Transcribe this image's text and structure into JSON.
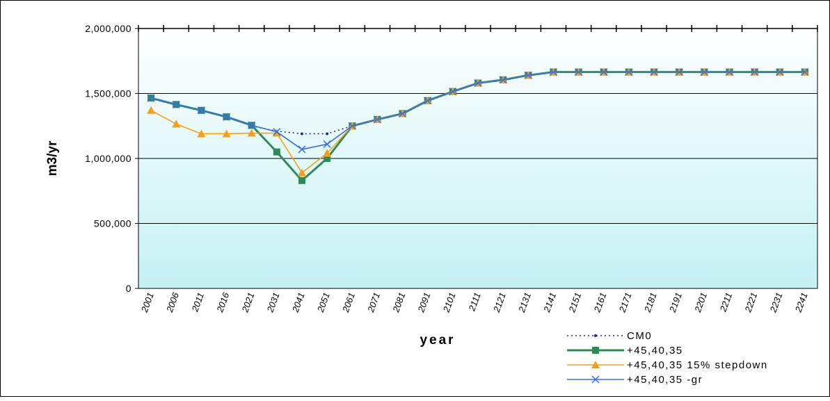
{
  "chart_data": {
    "type": "line",
    "title": "",
    "xlabel": "year",
    "ylabel": "m3/yr",
    "ylim": [
      0,
      2000000
    ],
    "yticks": [
      0,
      500000,
      1000000,
      1500000,
      2000000
    ],
    "ytick_labels": [
      "0",
      "500,000",
      "1,000,000",
      "1,500,000",
      "2,000,000"
    ],
    "grid": "horizontal",
    "legend_position": "bottom-right",
    "categories": [
      "2001",
      "2006",
      "2011",
      "2016",
      "2021",
      "2031",
      "2041",
      "2051",
      "2061",
      "2071",
      "2081",
      "2091",
      "2101",
      "2111",
      "2121",
      "2131",
      "2141",
      "2151",
      "2161",
      "2171",
      "2181",
      "2191",
      "2201",
      "2211",
      "2221",
      "2231",
      "2241"
    ],
    "series": [
      {
        "name": "CM0",
        "color": "#1f2a8c",
        "style": "dotted",
        "marker": "dot",
        "values": [
          1460000,
          1410000,
          1370000,
          1320000,
          1250000,
          1210000,
          1190000,
          1190000,
          1250000,
          1300000,
          1340000,
          1440000,
          1510000,
          1580000,
          1600000,
          1640000,
          1665000,
          1665000,
          1665000,
          1665000,
          1665000,
          1665000,
          1665000,
          1665000,
          1665000,
          1665000,
          1665000
        ]
      },
      {
        "name": "+45,40,35",
        "color": "#2e8b57",
        "style": "solid",
        "marker": "square",
        "values": [
          1465000,
          1415000,
          1370000,
          1320000,
          1255000,
          1050000,
          830000,
          1000000,
          1250000,
          1300000,
          1345000,
          1445000,
          1515000,
          1580000,
          1605000,
          1640000,
          1665000,
          1665000,
          1665000,
          1665000,
          1665000,
          1665000,
          1665000,
          1665000,
          1665000,
          1665000,
          1665000
        ]
      },
      {
        "name": "+45,40,35 15% stepdown",
        "color": "#f5a01a",
        "style": "solid",
        "marker": "triangle",
        "values": [
          1370000,
          1265000,
          1190000,
          1190000,
          1195000,
          1195000,
          890000,
          1040000,
          1250000,
          1300000,
          1345000,
          1445000,
          1515000,
          1580000,
          1605000,
          1640000,
          1665000,
          1665000,
          1665000,
          1665000,
          1665000,
          1665000,
          1665000,
          1665000,
          1665000,
          1665000,
          1665000
        ]
      },
      {
        "name": "+45,40,35 -gr",
        "color": "#3a6fe0",
        "style": "solid",
        "marker": "x",
        "values": [
          1465000,
          1415000,
          1370000,
          1320000,
          1255000,
          1205000,
          1070000,
          1110000,
          1250000,
          1300000,
          1345000,
          1445000,
          1515000,
          1580000,
          1605000,
          1640000,
          1665000,
          1665000,
          1665000,
          1665000,
          1665000,
          1665000,
          1665000,
          1665000,
          1665000,
          1665000,
          1665000
        ]
      }
    ]
  }
}
